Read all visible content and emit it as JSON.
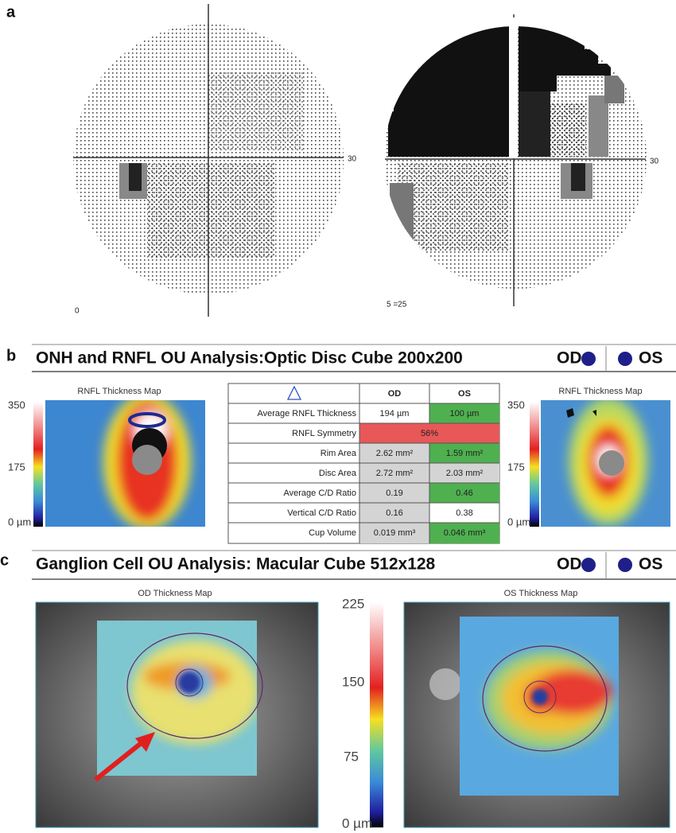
{
  "panel_a": {
    "label": "a",
    "left_field": {
      "axis_label": "30",
      "corner_label": "0"
    },
    "right_field": {
      "axis_label": "30",
      "corner_label": "5 =25"
    }
  },
  "panel_b": {
    "label": "b",
    "header": {
      "title": "ONH and RNFL OU Analysis:Optic Disc Cube 200x200",
      "od": "OD",
      "os": "OS"
    },
    "left_map": {
      "title": "RNFL Thickness Map",
      "scale": [
        "350",
        "175",
        "0 µm"
      ]
    },
    "right_map": {
      "title": "RNFL Thickness Map",
      "scale": [
        "350",
        "175",
        "0 µm"
      ]
    },
    "table": {
      "header": [
        "OD",
        "OS"
      ],
      "rows": [
        [
          "Average RNFL Thickness",
          "194 µm",
          "100 µm"
        ],
        [
          "RNFL Symmetry",
          "56%"
        ],
        [
          "Rim Area",
          "2.62 mm²",
          "1.59 mm²"
        ],
        [
          "Disc Area",
          "2.72 mm²",
          "2.03 mm²"
        ],
        [
          "Average C/D Ratio",
          "0.19",
          "0.46"
        ],
        [
          "Vertical C/D Ratio",
          "0.16",
          "0.38"
        ],
        [
          "Cup Volume",
          "0.019 mm³",
          "0.046 mm³"
        ]
      ]
    }
  },
  "panel_c": {
    "label": "c",
    "header": {
      "title": "Ganglion Cell OU Analysis: Macular Cube 512x128",
      "od": "OD",
      "os": "OS"
    },
    "left_map": {
      "title": "OD Thickness Map"
    },
    "right_map": {
      "title": "OS Thickness Map"
    },
    "scale": [
      "225",
      "150",
      "75",
      "0 µm"
    ]
  }
}
